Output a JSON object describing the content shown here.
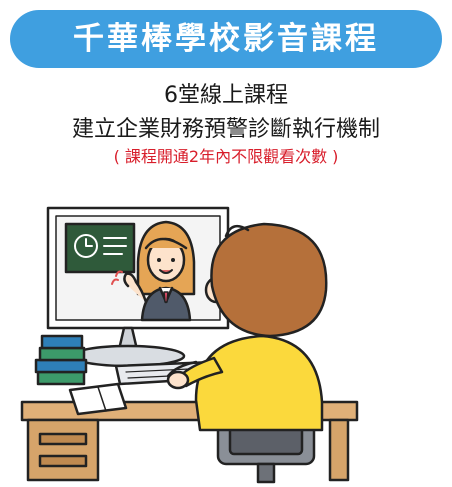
{
  "banner": {
    "title": "千華棒學校影音課程"
  },
  "body": {
    "line1": "6堂線上課程",
    "line2": "建立企業財務預警診斷執行機制",
    "note": "( 課程開通2年內不限觀看次數 )"
  },
  "colors": {
    "banner_bg": "#3f9fe0",
    "note_text": "#d81e2b",
    "shirt": "#fbd93c",
    "hair": "#b5703a",
    "desk": "#d6a46a"
  },
  "illustration": {
    "icon": "online-learning-illustration"
  }
}
